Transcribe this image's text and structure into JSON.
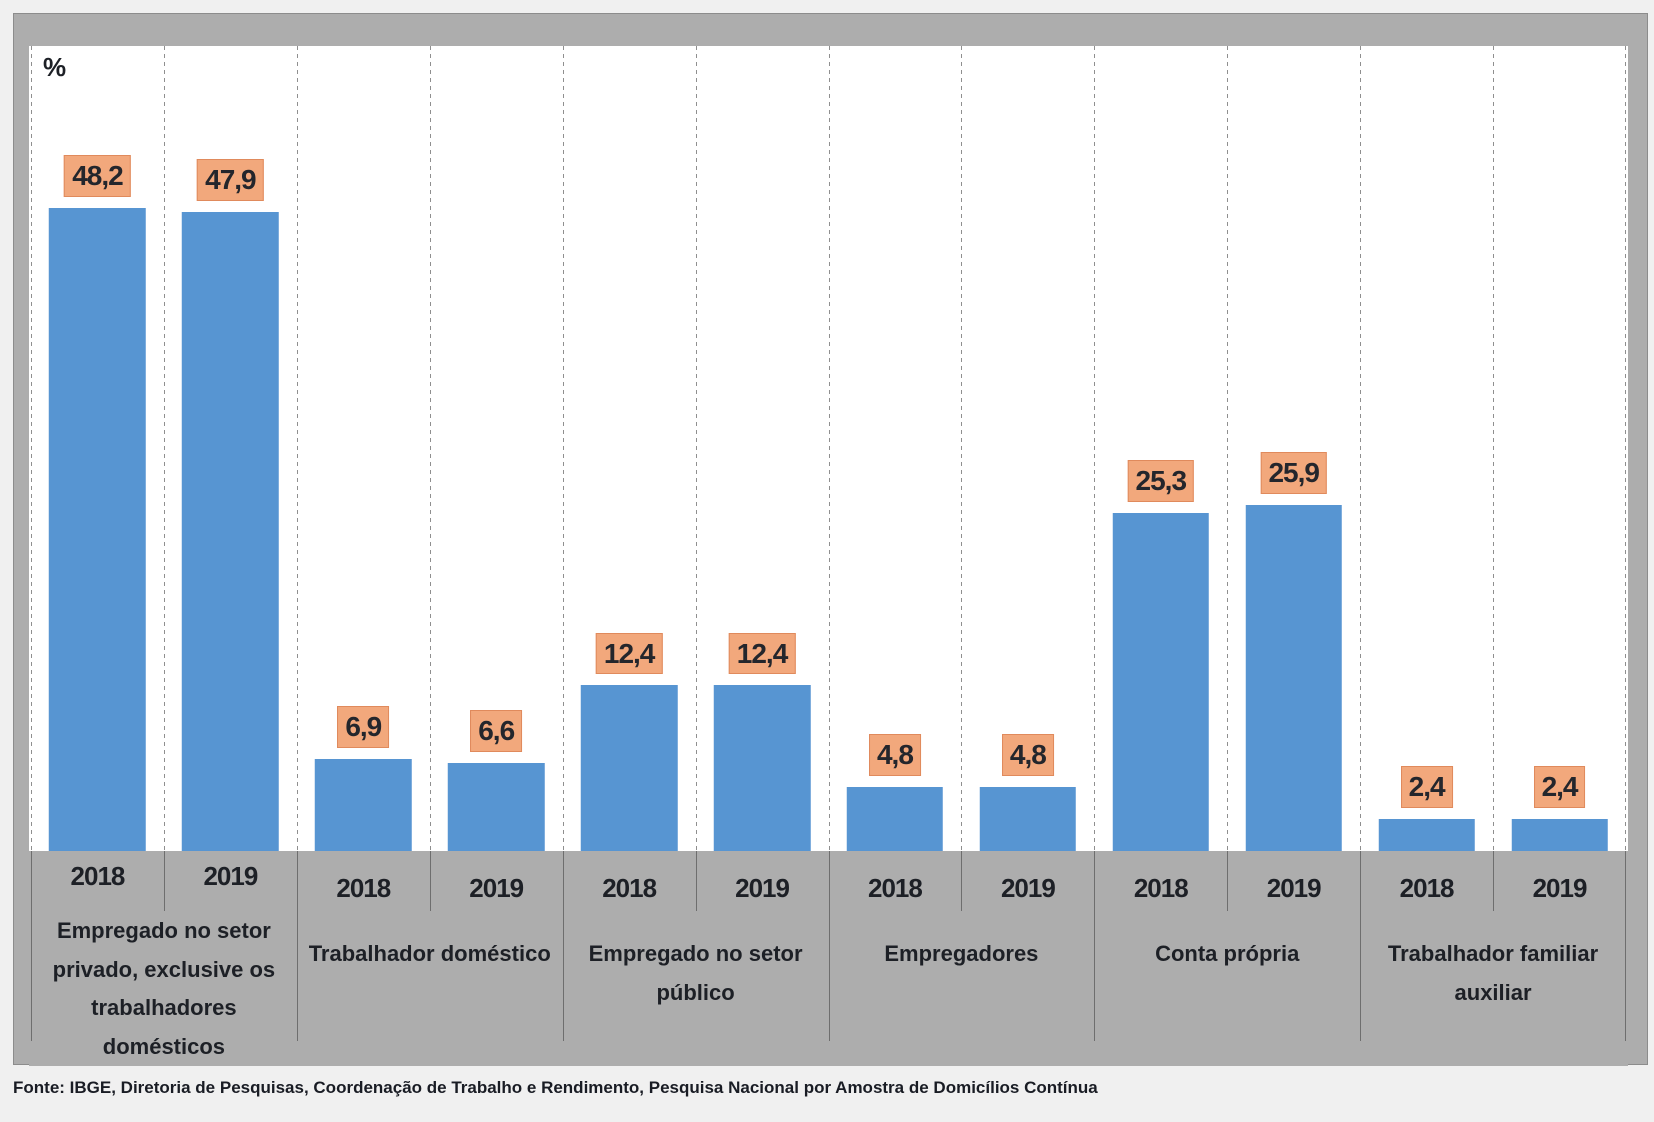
{
  "chart": {
    "unit_label": "%",
    "source": "Fonte: IBGE, Diretoria de Pesquisas, Coordenação de Trabalho e Rendimento, Pesquisa Nacional por Amostra de Domicílios Contínua",
    "colors": {
      "bar": "#5795D2",
      "value_label_bg": "#F2A87C",
      "value_label_border": "#E08A5C",
      "frame_bg": "#ADADAD",
      "plot_bg": "#FFFFFF",
      "page_bg": "#F0F0F0",
      "gridline": "#8F8F8F",
      "separator": "#6E6E6E",
      "text": "#1D2026"
    }
  },
  "chart_data": {
    "type": "bar",
    "title": "",
    "ylabel": "%",
    "xlabel": "",
    "ylim": [
      0,
      60.3
    ],
    "grid": "vertical-dashed-between-columns",
    "legend": "none",
    "categories": [
      "Empregado no setor privado, exclusive os trabalhadores domésticos",
      "Trabalhador doméstico",
      "Empregado no setor público",
      "Empregadores",
      "Conta própria",
      "Trabalhador familiar auxiliar"
    ],
    "series": [
      {
        "name": "2018",
        "values": [
          48.2,
          6.9,
          12.4,
          4.8,
          25.3,
          2.4
        ],
        "labels": [
          "48,2",
          "6,9",
          "12,4",
          "4,8",
          "25,3",
          "2,4"
        ]
      },
      {
        "name": "2019",
        "values": [
          47.9,
          6.6,
          12.4,
          4.8,
          25.9,
          2.4
        ],
        "labels": [
          "47,9",
          "6,6",
          "12,4",
          "4,8",
          "25,9",
          "2,4"
        ]
      }
    ]
  }
}
